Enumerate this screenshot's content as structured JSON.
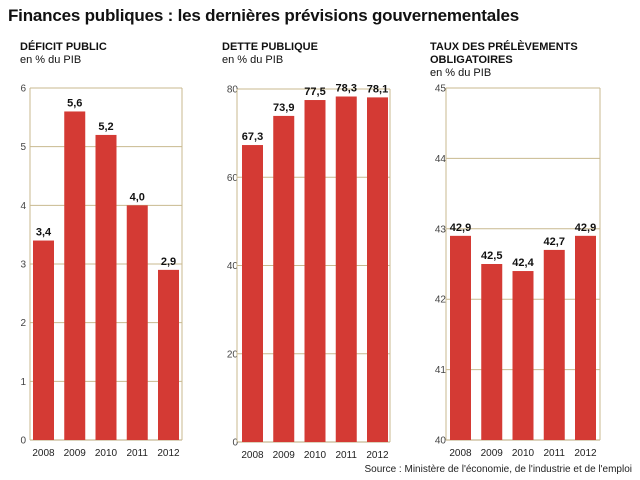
{
  "title": "Finances publiques : les dernières prévisions gouvernementales",
  "source": "Source : Ministère de l'économie, de l'industrie et de l'emploi",
  "colors": {
    "bar": "#d43a34",
    "grid": "#c8b98f",
    "axis": "#b8a77a"
  },
  "chart_data": [
    {
      "type": "bar",
      "title": "DÉFICIT PUBLIC",
      "unit": "en % du PIB",
      "categories": [
        "2008",
        "2009",
        "2010",
        "2011",
        "2012"
      ],
      "values": [
        3.4,
        5.6,
        5.2,
        4.0,
        2.9
      ],
      "value_labels": [
        "3,4",
        "5,6",
        "5,2",
        "4,0",
        "2,9"
      ],
      "ylim": [
        0,
        6
      ],
      "yticks": [
        0,
        1,
        2,
        3,
        4,
        5,
        6
      ],
      "grid": true
    },
    {
      "type": "bar",
      "title": "DETTE PUBLIQUE",
      "unit": "en % du PIB",
      "categories": [
        "2008",
        "2009",
        "2010",
        "2011",
        "2012"
      ],
      "values": [
        67.3,
        73.9,
        77.5,
        78.3,
        78.1
      ],
      "value_labels": [
        "67,3",
        "73,9",
        "77,5",
        "78,3",
        "78,1"
      ],
      "ylim": [
        0,
        80
      ],
      "yticks": [
        0,
        20,
        40,
        60,
        80
      ],
      "grid": true
    },
    {
      "type": "bar",
      "title": "TAUX DES PRÉLÈVEMENTS OBLIGATOIRES",
      "unit": "en % du PIB",
      "categories": [
        "2008",
        "2009",
        "2010",
        "2011",
        "2012"
      ],
      "values": [
        42.9,
        42.5,
        42.4,
        42.7,
        42.9
      ],
      "value_labels": [
        "42,9",
        "42,5",
        "42,4",
        "42,7",
        "42,9"
      ],
      "ylim": [
        40,
        45
      ],
      "yticks": [
        40,
        41,
        42,
        43,
        44,
        45
      ],
      "grid": true
    }
  ]
}
